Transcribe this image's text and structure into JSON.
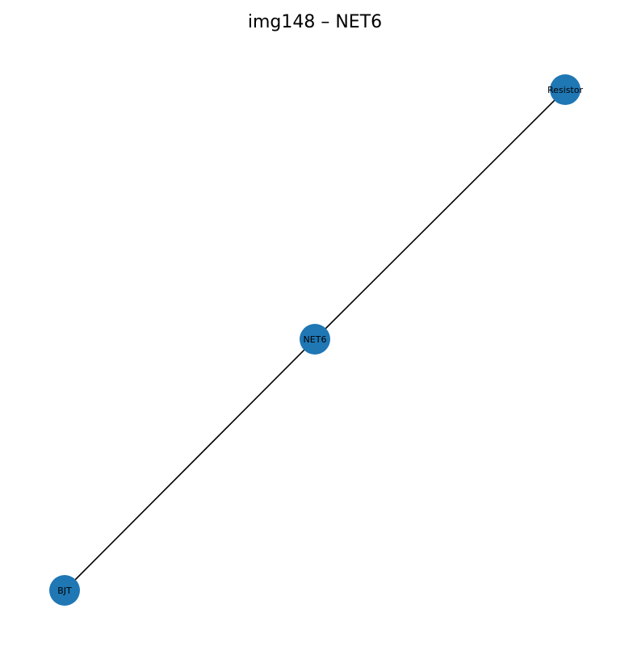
{
  "title": "img148 – NET6",
  "colors": {
    "node_fill": "#1f77b4",
    "edge": "#000000",
    "label": "#000000",
    "background": "#ffffff"
  },
  "graph": {
    "nodes": [
      {
        "id": "resistor",
        "label": "Resistor"
      },
      {
        "id": "net6",
        "label": "NET6"
      },
      {
        "id": "bjt",
        "label": "BJT"
      }
    ],
    "edges": [
      {
        "from": "net6",
        "to": "resistor"
      },
      {
        "from": "net6",
        "to": "bjt"
      }
    ]
  }
}
